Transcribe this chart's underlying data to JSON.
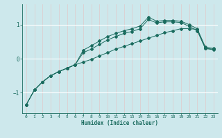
{
  "xlabel": "Humidex (Indice chaleur)",
  "ylabel": "",
  "bg_color": "#cde8ec",
  "grid_color": "#ffffff",
  "line_color": "#1a6b5e",
  "xlim": [
    -0.5,
    23.5
  ],
  "ylim": [
    -1.6,
    1.6
  ],
  "xticks": [
    0,
    1,
    2,
    3,
    4,
    5,
    6,
    7,
    8,
    9,
    10,
    11,
    12,
    13,
    14,
    15,
    16,
    17,
    18,
    19,
    20,
    21,
    22,
    23
  ],
  "yticks": [
    -1,
    0,
    1
  ],
  "line1_x": [
    0,
    1,
    2,
    3,
    4,
    5,
    6,
    7,
    8,
    9,
    10,
    11,
    12,
    13,
    14,
    15,
    16,
    17,
    18,
    19,
    20,
    21,
    22,
    23
  ],
  "line1_y": [
    -1.35,
    -0.92,
    -0.68,
    -0.5,
    -0.38,
    -0.28,
    -0.18,
    -0.1,
    -0.02,
    0.08,
    0.18,
    0.28,
    0.36,
    0.44,
    0.52,
    0.6,
    0.68,
    0.76,
    0.82,
    0.88,
    0.88,
    0.86,
    0.3,
    0.26
  ],
  "line2_x": [
    0,
    1,
    2,
    3,
    4,
    5,
    6,
    7,
    8,
    9,
    10,
    11,
    12,
    13,
    14,
    15,
    16,
    17,
    18,
    19,
    20,
    21,
    22,
    23
  ],
  "line2_y": [
    -1.35,
    -0.92,
    -0.68,
    -0.5,
    -0.38,
    -0.28,
    -0.18,
    0.18,
    0.28,
    0.42,
    0.55,
    0.65,
    0.74,
    0.8,
    0.88,
    1.15,
    1.05,
    1.08,
    1.08,
    1.06,
    0.95,
    0.82,
    0.3,
    0.28
  ],
  "line3_x": [
    0,
    1,
    2,
    3,
    4,
    5,
    6,
    7,
    8,
    9,
    10,
    11,
    12,
    13,
    14,
    15,
    16,
    17,
    18,
    19,
    20,
    21,
    22,
    23
  ],
  "line3_y": [
    -1.35,
    -0.92,
    -0.68,
    -0.5,
    -0.38,
    -0.28,
    -0.18,
    0.25,
    0.38,
    0.52,
    0.65,
    0.74,
    0.82,
    0.88,
    0.96,
    1.22,
    1.1,
    1.12,
    1.12,
    1.1,
    1.0,
    0.88,
    0.34,
    0.3
  ]
}
